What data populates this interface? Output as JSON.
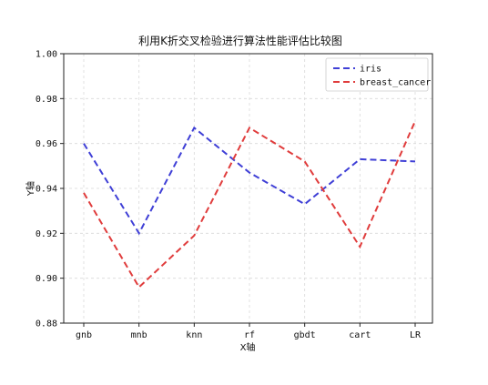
{
  "chart_data": {
    "type": "line",
    "title": "利用K折交叉检验进行算法性能评估比较图",
    "xlabel": "X轴",
    "ylabel": "Y轴",
    "categories": [
      "gnb",
      "mnb",
      "knn",
      "rf",
      "gbdt",
      "cart",
      "LR"
    ],
    "ylim": [
      0.88,
      1.0
    ],
    "yticks": [
      0.88,
      0.9,
      0.92,
      0.94,
      0.96,
      0.98,
      1.0
    ],
    "ytick_labels": [
      "0.88",
      "0.90",
      "0.92",
      "0.94",
      "0.96",
      "0.98",
      "1.00"
    ],
    "grid": true,
    "legend_position": "top-right",
    "series": [
      {
        "name": "iris",
        "color": "#3f3fd6",
        "style": "dashed",
        "values": [
          0.96,
          0.92,
          0.967,
          0.947,
          0.933,
          0.953,
          0.952
        ]
      },
      {
        "name": "breast_cancer",
        "color": "#e03c3c",
        "style": "dashed",
        "values": [
          0.938,
          0.896,
          0.919,
          0.967,
          0.952,
          0.914,
          0.97
        ]
      }
    ]
  }
}
